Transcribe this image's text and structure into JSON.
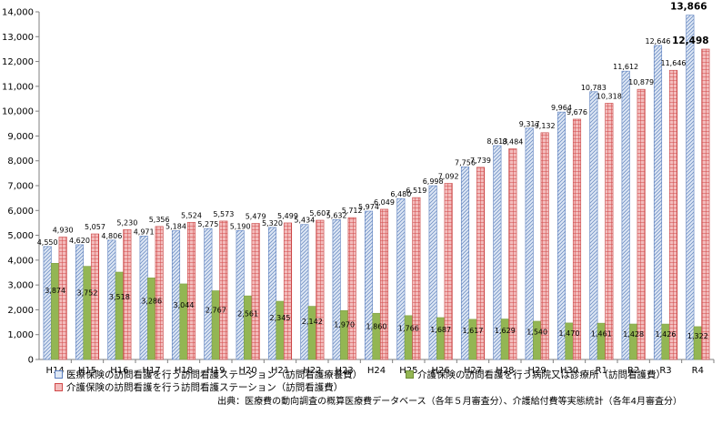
{
  "chart_data": {
    "type": "bar",
    "categories": [
      "H14",
      "H15",
      "H16",
      "H17",
      "H18",
      "H19",
      "H20",
      "H21",
      "H22",
      "H23",
      "H24",
      "H25",
      "H26",
      "H27",
      "H28",
      "H29",
      "H30",
      "R1",
      "R2",
      "R3",
      "R4"
    ],
    "series": [
      {
        "name": "医療保険の訪問看護を行う訪問看護ステーション（訪問看護療養費）",
        "color": "#9db3d6",
        "values": [
          4550,
          4620,
          4806,
          4971,
          5184,
          5275,
          5190,
          5320,
          5434,
          5632,
          5974,
          6480,
          6998,
          7756,
          8613,
          9317,
          9964,
          10783,
          11612,
          12646,
          13866
        ]
      },
      {
        "name": "介護保険の訪問看護を行う病院又は診療所（訪問看護費）",
        "color": "#93b653",
        "values": [
          3874,
          3752,
          3518,
          3286,
          3044,
          2767,
          2561,
          2345,
          2142,
          1970,
          1860,
          1766,
          1687,
          1617,
          1629,
          1540,
          1470,
          1461,
          1428,
          1426,
          1322
        ]
      },
      {
        "name": "介護保険の訪問看護を行う訪問看護ステーション（訪問看護費）",
        "color": "#e07a7a",
        "values": [
          4930,
          5057,
          5230,
          5356,
          5524,
          5573,
          5479,
          5499,
          5607,
          5712,
          6049,
          6519,
          7092,
          7739,
          8484,
          9132,
          9676,
          10318,
          10879,
          11646,
          12498
        ]
      }
    ],
    "ylim": [
      0,
      14000
    ],
    "yticks": [
      0,
      1000,
      2000,
      3000,
      4000,
      5000,
      6000,
      7000,
      8000,
      9000,
      10000,
      11000,
      12000,
      13000,
      14000
    ],
    "ytick_labels": [
      "0",
      "1,000",
      "2,000",
      "3,000",
      "4,000",
      "5,000",
      "6,000",
      "7,000",
      "8,000",
      "9,000",
      "10,000",
      "11,000",
      "12,000",
      "13,000",
      "14,000"
    ],
    "grid": false,
    "legend_position": "bottom"
  },
  "legend": {
    "item1": "医療保険の訪問看護を行う訪問看護ステーション（訪問看護療養費）",
    "item2": "介護保険の訪問看護を行う病院又は診療所（訪問看護費）",
    "item3": "介護保険の訪問看護を行う訪問看護ステーション（訪問看護費）"
  },
  "source": "出典：医療費の動向調査の概算医療費データベース（各年５月審査分）、介護給付費等実態統計（各年4月審査分）"
}
